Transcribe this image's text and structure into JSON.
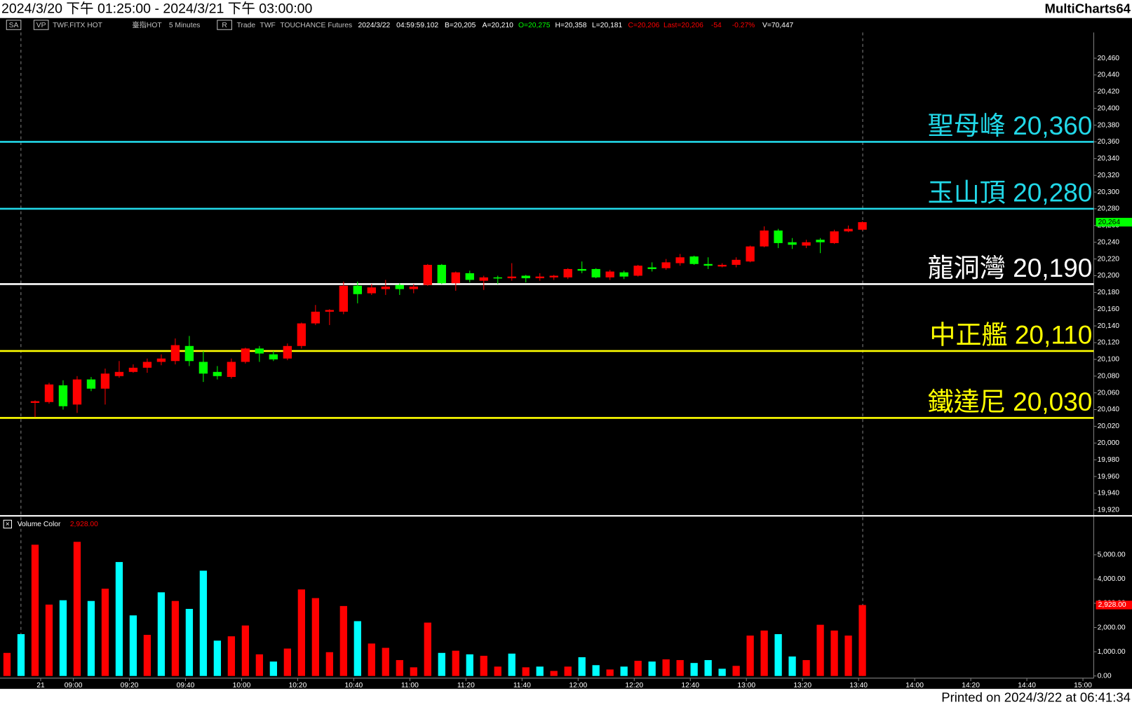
{
  "header": {
    "title": "2024/3/20 下午 01:25:00 - 2024/3/21 下午 03:00:00",
    "app": "MultiCharts64"
  },
  "toolbar": [
    {
      "text": "SA",
      "color": "#c0c0c0"
    },
    {
      "text": "VP",
      "color": "#c0c0c0"
    },
    {
      "text": "TWF.FITX HOT",
      "color": "#c0c0c0"
    },
    {
      "text": "臺指HOT",
      "color": "#c0c0c0"
    },
    {
      "text": "5 Minutes",
      "color": "#c0c0c0"
    },
    {
      "text": "R",
      "color": "#c0c0c0"
    },
    {
      "text": "Trade",
      "color": "#c0c0c0"
    },
    {
      "text": "TWF",
      "color": "#c0c0c0"
    },
    {
      "text": "TOUCHANCE",
      "color": "#c0c0c0"
    },
    {
      "text": "Futures",
      "color": "#c0c0c0"
    },
    {
      "text": "2024/3/22",
      "color": "#ffffff"
    },
    {
      "text": "04:59:59.102",
      "color": "#ffffff"
    },
    {
      "text": "B=20,205",
      "color": "#ffffff"
    },
    {
      "text": "A=20,210",
      "color": "#ffffff"
    },
    {
      "text": "O=20,275",
      "color": "#00ff00"
    },
    {
      "text": "H=20,358",
      "color": "#ffffff"
    },
    {
      "text": "L=20,181",
      "color": "#ffffff"
    },
    {
      "text": "C=20,206",
      "color": "#ff0000"
    },
    {
      "text": "Last=20,206",
      "color": "#ff0000"
    },
    {
      "text": "-54",
      "color": "#ff0000"
    },
    {
      "text": "-0.27%",
      "color": "#ff0000"
    },
    {
      "text": "V=70,447",
      "color": "#ffffff"
    }
  ],
  "footer": "Printed on 2024/3/22 at 06:41:34",
  "chart_data": [
    {
      "type": "candlestick",
      "up_color": "#ff0000",
      "down_color": "#00ff00",
      "open": [
        null,
        null,
        20048,
        20049,
        20069,
        20046,
        20076,
        20065,
        20080,
        20085,
        20090,
        20097,
        20098,
        20116,
        20097,
        20085,
        20079,
        20097,
        20113,
        20106,
        20101,
        20116,
        20143,
        20157,
        20157,
        20188,
        20179,
        20184,
        20189,
        20184,
        20189,
        20213,
        20191,
        20203,
        20194,
        20198,
        20197,
        20200,
        20197,
        20198,
        20198,
        20208,
        20208,
        20198,
        20204,
        20200,
        20210,
        20209,
        20215,
        20223,
        20214,
        20211,
        20213,
        20217,
        20235,
        20254,
        20240,
        20236,
        20243,
        20239,
        20253,
        20255
      ],
      "high": [
        null,
        null,
        20051,
        20072,
        20075,
        20080,
        20079,
        20089,
        20098,
        20094,
        20101,
        20106,
        20125,
        20128,
        20110,
        20092,
        20101,
        20114,
        20116,
        20110,
        20119,
        20144,
        20165,
        20160,
        20193,
        20193,
        20190,
        20195,
        20191,
        20190,
        20214,
        20214,
        20205,
        20206,
        20200,
        20200,
        20215,
        20201,
        20203,
        20201,
        20209,
        20217,
        20209,
        20207,
        20206,
        20213,
        20216,
        20220,
        20226,
        20224,
        20222,
        20215,
        20222,
        20236,
        20259,
        20256,
        20245,
        20243,
        20245,
        20255,
        20260,
        20265
      ],
      "low": [
        null,
        null,
        20031,
        20047,
        20040,
        20036,
        20062,
        20046,
        20078,
        20084,
        20084,
        20093,
        20094,
        20092,
        20073,
        20076,
        20077,
        20095,
        20097,
        20098,
        20099,
        20113,
        20141,
        20141,
        20154,
        20167,
        20177,
        20177,
        20177,
        20179,
        20188,
        20190,
        20182,
        20192,
        20183,
        20190,
        20194,
        20192,
        20194,
        20195,
        20196,
        20203,
        20197,
        20195,
        20196,
        20199,
        20205,
        20207,
        20212,
        20213,
        20208,
        20210,
        20210,
        20216,
        20234,
        20233,
        20232,
        20233,
        20227,
        20238,
        20252,
        20254
      ],
      "close": [
        null,
        null,
        20050,
        20070,
        20044,
        20076,
        20065,
        20083,
        20085,
        20090,
        20097,
        20101,
        20117,
        20098,
        20083,
        20080,
        20097,
        20113,
        20107,
        20100,
        20116,
        20143,
        20157,
        20159,
        20188,
        20178,
        20186,
        20187,
        20184,
        20187,
        20213,
        20191,
        20204,
        20195,
        20198,
        20197,
        20199,
        20197,
        20199,
        20200,
        20208,
        20206,
        20198,
        20205,
        20199,
        20212,
        20208,
        20216,
        20222,
        20214,
        20212,
        20213,
        20219,
        20235,
        20254,
        20239,
        20237,
        20240,
        20240,
        20253,
        20256,
        20264
      ],
      "last_value": 20264,
      "last_value_label": "20,264",
      "last_color": "#00ff00",
      "levels": [
        {
          "name": "聖母峰",
          "value": 20360,
          "label": "20,360",
          "color": "#22d8e8"
        },
        {
          "name": "玉山頂",
          "value": 20280,
          "label": "20,280",
          "color": "#22d8e8"
        },
        {
          "name": "龍洞灣",
          "value": 20190,
          "label": "20,190",
          "color": "#ffffff"
        },
        {
          "name": "中正艦",
          "value": 20110,
          "label": "20,110",
          "color": "#ffff00"
        },
        {
          "name": "鐵達尼",
          "value": 20030,
          "label": "20,030",
          "color": "#ffff00"
        }
      ],
      "xlim": [
        -0.5,
        77.5
      ],
      "ylim": [
        19913,
        20508
      ],
      "yticks": [
        {
          "value": 19920,
          "label": "19,920"
        },
        {
          "value": 19940,
          "label": "19,940"
        },
        {
          "value": 19960,
          "label": "19,960"
        },
        {
          "value": 19980,
          "label": "19,980"
        },
        {
          "value": 20000,
          "label": "20,000"
        },
        {
          "value": 20020,
          "label": "20,020"
        },
        {
          "value": 20040,
          "label": "20,040"
        },
        {
          "value": 20060,
          "label": "20,060"
        },
        {
          "value": 20080,
          "label": "20,080"
        },
        {
          "value": 20100,
          "label": "20,100"
        },
        {
          "value": 20120,
          "label": "20,120"
        },
        {
          "value": 20140,
          "label": "20,140"
        },
        {
          "value": 20160,
          "label": "20,160"
        },
        {
          "value": 20180,
          "label": "20,180"
        },
        {
          "value": 20200,
          "label": "20,200"
        },
        {
          "value": 20220,
          "label": "20,220"
        },
        {
          "value": 20240,
          "label": "20,240"
        },
        {
          "value": 20260,
          "label": "20,260"
        },
        {
          "value": 20280,
          "label": "20,280"
        },
        {
          "value": 20300,
          "label": "20,300"
        },
        {
          "value": 20320,
          "label": "20,320"
        },
        {
          "value": 20340,
          "label": "20,340"
        },
        {
          "value": 20360,
          "label": "20,360"
        },
        {
          "value": 20380,
          "label": "20,380"
        },
        {
          "value": 20400,
          "label": "20,400"
        },
        {
          "value": 20420,
          "label": "20,420"
        },
        {
          "value": 20440,
          "label": "20,440"
        },
        {
          "value": 20460,
          "label": "20,460"
        }
      ]
    },
    {
      "type": "bar",
      "name": "Volume Color",
      "last_value_label": "2,928.00",
      "last_color": "#ff0000",
      "values": [
        952,
        1726,
        5417,
        2946,
        3125,
        5536,
        3095,
        3601,
        4702,
        2500,
        1696,
        3452,
        3095,
        2768,
        4345,
        1458,
        1637,
        2083,
        893,
        595,
        1131,
        3571,
        3214,
        982,
        2887,
        2262,
        1339,
        1161,
        655,
        357,
        2202,
        952,
        1042,
        893,
        833,
        387,
        923,
        357,
        387,
        208,
        387,
        774,
        446,
        268,
        387,
        625,
        595,
        685,
        655,
        536,
        655,
        298,
        417,
        1667,
        1875,
        1726,
        804,
        655,
        2113,
        1875,
        1667,
        2928
      ],
      "colors": [
        "#ff0000",
        "#00ffff",
        "#ff0000",
        "#ff0000",
        "#00ffff",
        "#ff0000",
        "#00ffff",
        "#ff0000",
        "#00ffff",
        "#00ffff",
        "#ff0000",
        "#00ffff",
        "#ff0000",
        "#00ffff",
        "#00ffff",
        "#00ffff",
        "#ff0000",
        "#ff0000",
        "#ff0000",
        "#00ffff",
        "#ff0000",
        "#ff0000",
        "#ff0000",
        "#ff0000",
        "#ff0000",
        "#00ffff",
        "#ff0000",
        "#ff0000",
        "#ff0000",
        "#ff0000",
        "#ff0000",
        "#00ffff",
        "#ff0000",
        "#00ffff",
        "#ff0000",
        "#ff0000",
        "#00ffff",
        "#ff0000",
        "#00ffff",
        "#ff0000",
        "#ff0000",
        "#00ffff",
        "#00ffff",
        "#ff0000",
        "#00ffff",
        "#ff0000",
        "#00ffff",
        "#ff0000",
        "#ff0000",
        "#00ffff",
        "#00ffff",
        "#00ffff",
        "#ff0000",
        "#ff0000",
        "#ff0000",
        "#00ffff",
        "#00ffff",
        "#ff0000",
        "#ff0000",
        "#ff0000",
        "#ff0000",
        "#ff0000"
      ],
      "xlim": [
        -0.5,
        77.5
      ],
      "ylim": [
        -90,
        6520
      ],
      "yticks": [
        {
          "value": 0,
          "label": "0.00"
        },
        {
          "value": 1000,
          "label": "1,000.00"
        },
        {
          "value": 2000,
          "label": "2,000.00"
        },
        {
          "value": 3000,
          "label": "3,000.00"
        },
        {
          "value": 4000,
          "label": "4,000.00"
        },
        {
          "value": 5000,
          "label": "5,000.00"
        }
      ],
      "xticks": [
        {
          "value": 2.4,
          "label": "21"
        },
        {
          "value": 4.73,
          "label": "09:00"
        },
        {
          "value": 8.73,
          "label": "09:20"
        },
        {
          "value": 12.73,
          "label": "09:40"
        },
        {
          "value": 16.73,
          "label": "10:00"
        },
        {
          "value": 20.73,
          "label": "10:20"
        },
        {
          "value": 24.73,
          "label": "10:40"
        },
        {
          "value": 28.73,
          "label": "11:00"
        },
        {
          "value": 32.73,
          "label": "11:20"
        },
        {
          "value": 36.73,
          "label": "11:40"
        },
        {
          "value": 40.73,
          "label": "12:00"
        },
        {
          "value": 44.73,
          "label": "12:20"
        },
        {
          "value": 48.73,
          "label": "12:40"
        },
        {
          "value": 52.73,
          "label": "13:00"
        },
        {
          "value": 56.73,
          "label": "13:20"
        },
        {
          "value": 60.73,
          "label": "13:40"
        },
        {
          "value": 64.73,
          "label": "14:00"
        },
        {
          "value": 68.73,
          "label": "14:20"
        },
        {
          "value": 72.73,
          "label": "14:40"
        },
        {
          "value": 76.73,
          "label": "15:00"
        }
      ]
    }
  ]
}
